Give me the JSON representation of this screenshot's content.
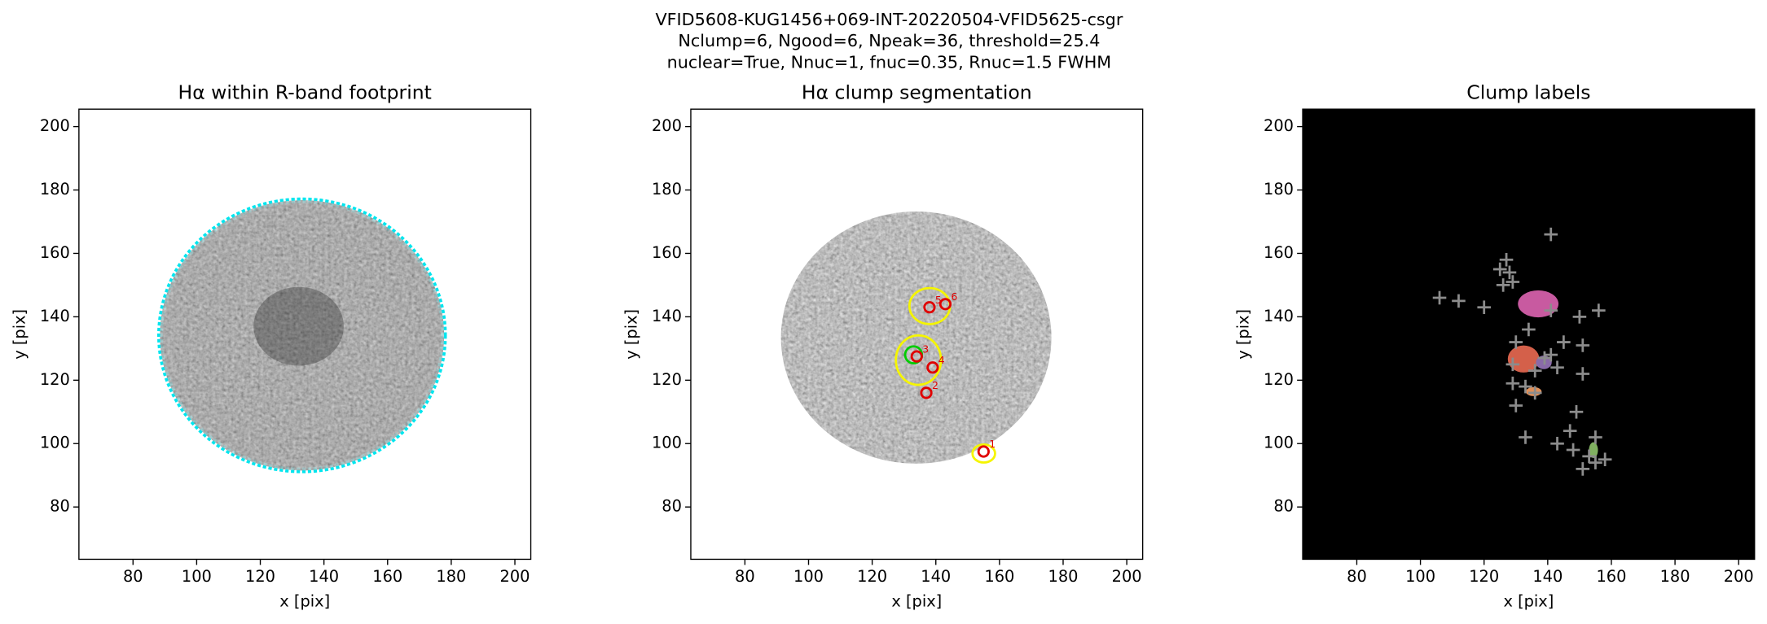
{
  "figure_title": [
    "VFID5608-KUG1456+069-INT-20220504-VFID5625-csgr",
    "Nclump=6, Ngood=6, Npeak=36, threshold=25.4",
    "nuclear=True, Nnuc=1, fnuc=0.35, Rnuc=1.5 FWHM"
  ],
  "chart_data": [
    {
      "type": "image",
      "title": "Hα within R-band footprint",
      "xlabel": "x [pix]",
      "ylabel": "y [pix]",
      "xlim": [
        63,
        205
      ],
      "ylim": [
        63.5,
        205.5
      ],
      "xticks": [
        80,
        100,
        120,
        140,
        160,
        180,
        200
      ],
      "yticks": [
        80,
        100,
        120,
        140,
        160,
        180,
        200
      ]
    },
    {
      "type": "scatter",
      "title": "Hα clump segmentation",
      "xlabel": "x [pix]",
      "ylabel": "y [pix]",
      "xlim": [
        63,
        205
      ],
      "ylim": [
        63.5,
        205.5
      ],
      "xticks": [
        80,
        100,
        120,
        140,
        160,
        180,
        200
      ],
      "yticks": [
        80,
        100,
        120,
        140,
        160,
        180,
        200
      ],
      "series": [
        {
          "color": "#00cc00",
          "marker": "circle-large",
          "x": [
            133
          ],
          "y": [
            128
          ]
        },
        {
          "color": "#e00000",
          "marker": "circle",
          "x": [
            155,
            137,
            134,
            139,
            138,
            143
          ],
          "y": [
            97.5,
            116,
            127.5,
            124,
            143,
            144
          ],
          "labels": [
            "1",
            "2",
            "3",
            "4",
            "5",
            "6"
          ]
        }
      ]
    },
    {
      "type": "scatter",
      "title": "Clump labels",
      "xlabel": "x [pix]",
      "ylabel": "y [pix]",
      "xlim": [
        63,
        205
      ],
      "ylim": [
        63.5,
        205.5
      ],
      "xticks": [
        80,
        100,
        120,
        140,
        160,
        180,
        200
      ],
      "yticks": [
        80,
        100,
        120,
        140,
        160,
        180,
        200
      ],
      "series": [
        {
          "color": "#8c8c8c",
          "marker": "plus",
          "x": [
            141,
            127,
            125,
            128,
            129,
            126,
            106,
            112,
            120,
            141,
            156,
            150,
            134,
            145,
            130,
            151,
            141,
            143,
            129,
            151,
            133,
            136,
            130,
            149,
            147,
            133,
            143,
            148,
            155,
            153,
            155,
            158,
            151,
            139,
            136,
            129
          ],
          "y": [
            166,
            158,
            155,
            154,
            151,
            150,
            146,
            145,
            143,
            142,
            142,
            140,
            136,
            132,
            132,
            131,
            128,
            124,
            119,
            122,
            118,
            116,
            112,
            110,
            104,
            102,
            100,
            98,
            102,
            96,
            94,
            95,
            92,
            127,
            123,
            125
          ]
        }
      ]
    }
  ]
}
